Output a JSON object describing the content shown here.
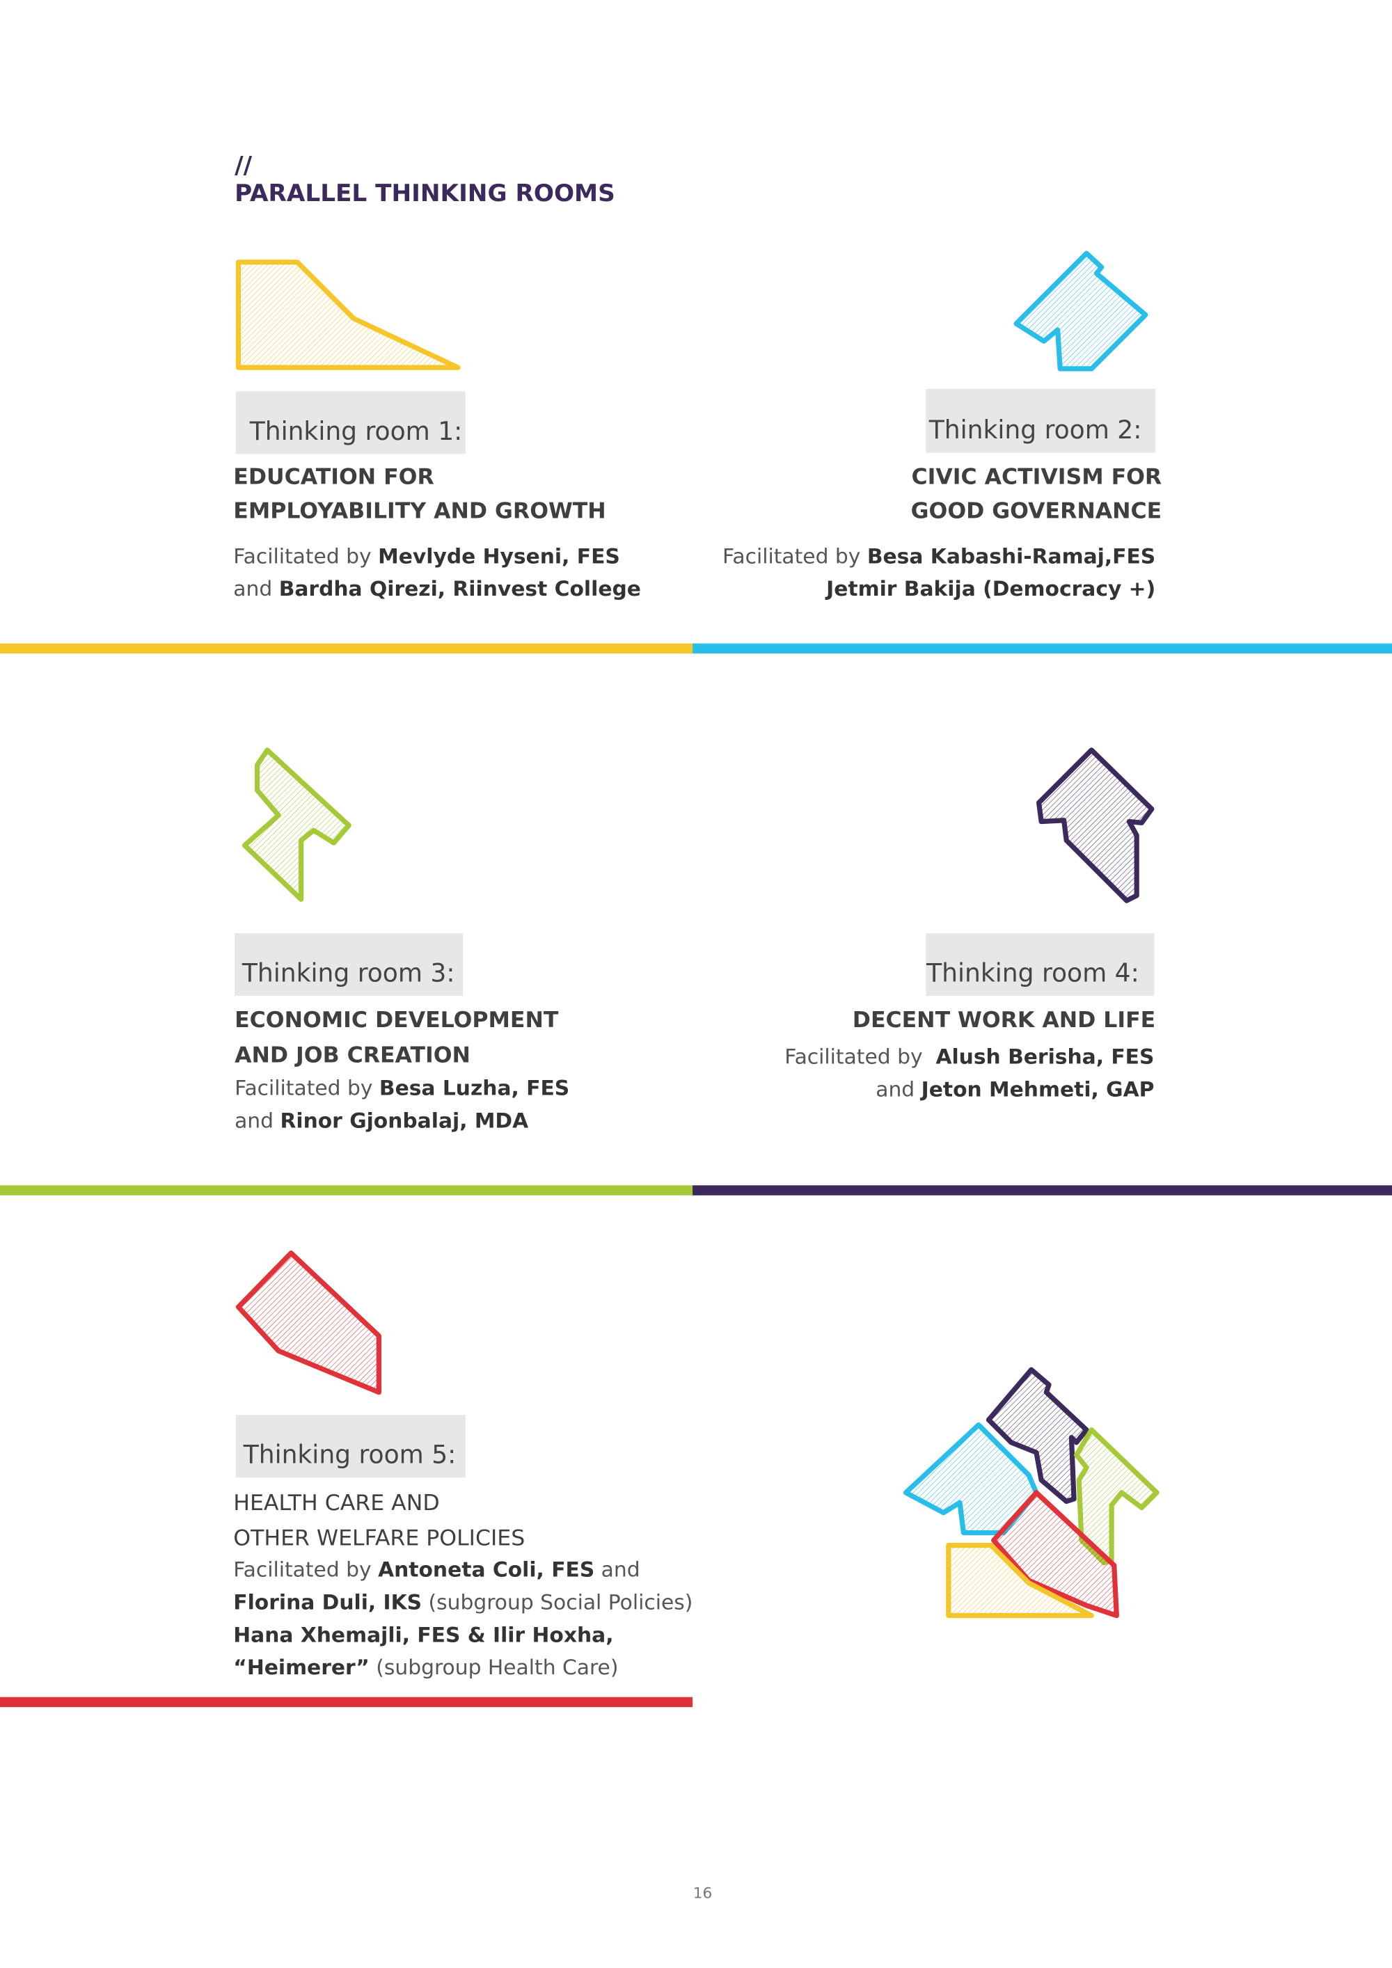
{
  "header": {
    "mark": "//",
    "title": "PARALLEL THINKING ROOMS"
  },
  "rooms": [
    {
      "label": "Thinking room 1:",
      "title": [
        "EDUCATION FOR",
        "EMPLOYABILITY AND GROWTH"
      ],
      "facilitators": [
        [
          {
            "regular": "Facilitated by "
          },
          {
            "bold": "Mevlyde Hyseni, FES"
          }
        ],
        [
          {
            "regular": "and "
          },
          {
            "bold": "Bardha Qirezi, Riinvest College"
          }
        ]
      ]
    },
    {
      "label": "Thinking room 2:",
      "title": [
        "CIVIC ACTIVISM FOR",
        "GOOD GOVERNANCE"
      ],
      "facilitators": [
        [
          {
            "regular": "Facilitated by "
          },
          {
            "bold": "Besa Kabashi-Ramaj,FES"
          }
        ],
        [
          {
            "bold": "Jetmir Bakija (Democracy +)"
          }
        ]
      ]
    },
    {
      "label": "Thinking room 3:",
      "title": [
        "ECONOMIC DEVELOPMENT",
        "AND JOB CREATION"
      ],
      "facilitators": [
        [
          {
            "regular": "Facilitated by "
          },
          {
            "bold": "Besa Luzha, FES"
          }
        ],
        [
          {
            "regular": "and "
          },
          {
            "bold": "Rinor Gjonbalaj, MDA"
          }
        ]
      ]
    },
    {
      "label": "Thinking room 4:",
      "title": [
        "DECENT WORK AND LIFE"
      ],
      "facilitators": [
        [
          {
            "regular": "Facilitated by  "
          },
          {
            "bold": "Alush Berisha, FES"
          }
        ],
        [
          {
            "regular": "and "
          },
          {
            "bold": "Jeton Mehmeti, GAP"
          }
        ]
      ]
    },
    {
      "label": "Thinking room 5:",
      "title": [
        "HEALTH CARE AND",
        "OTHER WELFARE POLICIES"
      ],
      "facilitators": [
        [
          {
            "regular": "Facilitated by "
          },
          {
            "bold": "Antoneta Coli, FES"
          },
          {
            "regular": " and"
          }
        ],
        [
          {
            "bold": "Florina Duli, IKS"
          },
          {
            "regular": " (subgroup Social Policies)"
          }
        ],
        [
          {
            "bold": "Hana Xhemajli, FES & Ilir Hoxha,"
          }
        ],
        [
          {
            "bold": "“Heimerer”"
          },
          {
            "regular": " (subgroup Health Care)"
          }
        ]
      ]
    }
  ],
  "page_number": "16"
}
